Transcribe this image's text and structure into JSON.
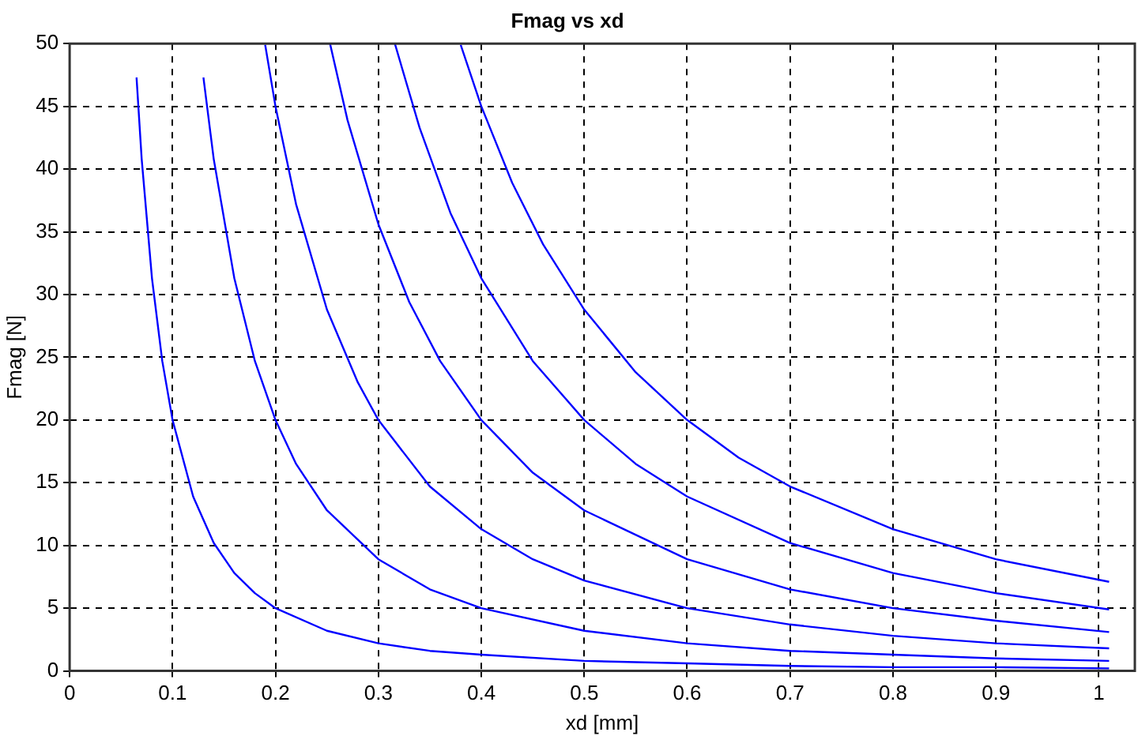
{
  "chart_data": {
    "type": "line",
    "title": "Fmag vs xd",
    "xlabel": "xd [mm]",
    "ylabel": "Fmag [N]",
    "xlim": [
      0,
      1.035
    ],
    "xticks": [
      0,
      0.1,
      0.2,
      0.3,
      0.4,
      0.5,
      0.6,
      0.7,
      0.8,
      0.9,
      1
    ],
    "ylim": [
      0,
      50
    ],
    "yticks": [
      0,
      5,
      10,
      15,
      20,
      25,
      30,
      35,
      40,
      45,
      50
    ],
    "grid": true,
    "legend": false,
    "series": [
      {
        "color": "#0000ff",
        "x": [
          0.065,
          0.07,
          0.08,
          0.09,
          0.1,
          0.12,
          0.14,
          0.16,
          0.18,
          0.2,
          0.25,
          0.3,
          0.35,
          0.4,
          0.5,
          0.6,
          0.7,
          0.8,
          0.9,
          1.01
        ],
        "values": [
          47.3,
          40.8,
          31.3,
          24.7,
          20,
          13.9,
          10.2,
          7.8,
          6.2,
          5,
          3.2,
          2.2,
          1.6,
          1.3,
          0.8,
          0.6,
          0.4,
          0.3,
          0.3,
          0.2
        ]
      },
      {
        "color": "#0000ff",
        "x": [
          0.13,
          0.14,
          0.16,
          0.18,
          0.2,
          0.22,
          0.25,
          0.3,
          0.35,
          0.4,
          0.5,
          0.6,
          0.7,
          0.8,
          0.9,
          1.01
        ],
        "values": [
          47.3,
          40.8,
          31.3,
          24.7,
          20,
          16.5,
          12.8,
          8.9,
          6.5,
          5,
          3.2,
          2.2,
          1.6,
          1.3,
          1,
          0.8
        ]
      },
      {
        "color": "#0000ff",
        "x": [
          0.19,
          0.2,
          0.22,
          0.25,
          0.28,
          0.3,
          0.35,
          0.4,
          0.45,
          0.5,
          0.6,
          0.7,
          0.8,
          0.9,
          1.01
        ],
        "values": [
          49.9,
          45,
          37.2,
          28.8,
          23,
          20,
          14.7,
          11.3,
          8.9,
          7.2,
          5,
          3.7,
          2.8,
          2.2,
          1.8
        ]
      },
      {
        "color": "#0000ff",
        "x": [
          0.253,
          0.27,
          0.3,
          0.33,
          0.36,
          0.4,
          0.45,
          0.5,
          0.6,
          0.7,
          0.8,
          0.9,
          1.01
        ],
        "values": [
          50,
          43.9,
          35.6,
          29.4,
          24.7,
          20,
          15.8,
          12.8,
          8.9,
          6.5,
          5,
          4,
          3.1
        ]
      },
      {
        "color": "#0000ff",
        "x": [
          0.316,
          0.34,
          0.37,
          0.4,
          0.45,
          0.5,
          0.55,
          0.6,
          0.7,
          0.8,
          0.9,
          1.01
        ],
        "values": [
          50,
          43.3,
          36.5,
          31.3,
          24.7,
          20,
          16.5,
          13.9,
          10.2,
          7.8,
          6.2,
          4.9
        ]
      },
      {
        "color": "#0000ff",
        "x": [
          0.38,
          0.4,
          0.43,
          0.46,
          0.5,
          0.55,
          0.6,
          0.65,
          0.7,
          0.8,
          0.9,
          1.01
        ],
        "values": [
          49.9,
          45,
          38.9,
          34,
          28.8,
          23.8,
          20,
          17,
          14.7,
          11.3,
          8.9,
          7.1
        ]
      }
    ]
  }
}
